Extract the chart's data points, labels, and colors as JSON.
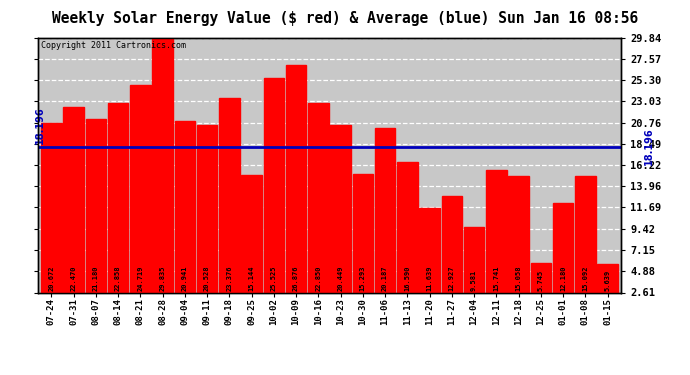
{
  "title": "Weekly Solar Energy Value ($ red) & Average (blue) Sun Jan 16 08:56",
  "copyright": "Copyright 2011 Cartronics.com",
  "categories": [
    "07-24",
    "07-31",
    "08-07",
    "08-14",
    "08-21",
    "08-28",
    "09-04",
    "09-11",
    "09-18",
    "09-25",
    "10-02",
    "10-09",
    "10-16",
    "10-23",
    "10-30",
    "11-06",
    "11-13",
    "11-20",
    "11-27",
    "12-04",
    "12-11",
    "12-18",
    "12-25",
    "01-01",
    "01-08",
    "01-15"
  ],
  "values": [
    20.672,
    22.47,
    21.18,
    22.858,
    24.719,
    29.835,
    20.941,
    20.528,
    23.376,
    15.144,
    25.525,
    26.876,
    22.85,
    20.449,
    15.293,
    20.187,
    16.59,
    11.639,
    12.927,
    9.581,
    15.741,
    15.058,
    5.745,
    12.18,
    15.092,
    5.639
  ],
  "average": 18.196,
  "ylim_min": 2.61,
  "ylim_max": 29.84,
  "yticks": [
    2.61,
    4.88,
    7.15,
    9.42,
    11.69,
    13.96,
    16.22,
    18.49,
    20.76,
    23.03,
    25.3,
    27.57,
    29.84
  ],
  "bar_color": "#FF0000",
  "avg_line_color": "#0000BB",
  "background_color": "#FFFFFF",
  "plot_bg_color": "#C8C8C8",
  "grid_color": "#FFFFFF",
  "title_fontsize": 10.5,
  "avg_label": "18.196",
  "label_color": "#0000BB",
  "val_label_color": "#000000",
  "copyright_color": "#000000"
}
